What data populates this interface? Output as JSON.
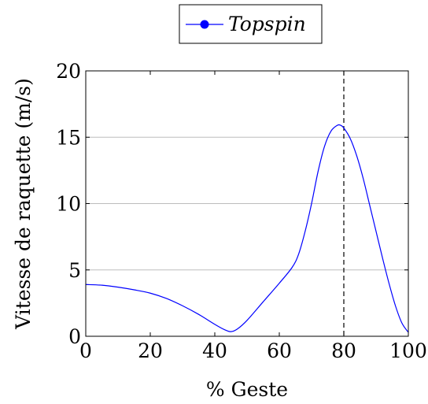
{
  "chart_data": {
    "type": "line",
    "title": "",
    "xlabel": "% Geste",
    "ylabel": "Vitesse de raquette (m/s)",
    "xlim": [
      0,
      100
    ],
    "ylim": [
      0,
      20
    ],
    "x_ticks": [
      0,
      20,
      40,
      60,
      80,
      100
    ],
    "x_tick_labels": [
      "0",
      "20",
      "40",
      "60",
      "80",
      "100"
    ],
    "y_ticks": [
      0,
      5,
      10,
      15,
      20
    ],
    "y_tick_labels": [
      "0",
      "5",
      "10",
      "15",
      "20"
    ],
    "grid": "horizontal",
    "legend_position": "top-center",
    "series": [
      {
        "name": "Topspin",
        "color": "#0000ff",
        "marker": "circle",
        "x": [
          0,
          5,
          10,
          15,
          20,
          25,
          30,
          35,
          40,
          43,
          45,
          47,
          50,
          55,
          60,
          64,
          66,
          68,
          70,
          72,
          74,
          76,
          78,
          79,
          80,
          82,
          84,
          86,
          88,
          90,
          92,
          94,
          96,
          98,
          100
        ],
        "y": [
          3.9,
          3.85,
          3.7,
          3.5,
          3.25,
          2.85,
          2.3,
          1.65,
          0.9,
          0.5,
          0.35,
          0.55,
          1.2,
          2.6,
          4.0,
          5.2,
          6.2,
          7.9,
          10.0,
          12.4,
          14.3,
          15.45,
          15.9,
          15.9,
          15.7,
          14.9,
          13.6,
          11.9,
          9.9,
          7.9,
          5.9,
          4.0,
          2.3,
          1.0,
          0.3
        ]
      }
    ],
    "annotations": [
      {
        "type": "vertical-dashed-line",
        "x": 80,
        "color": "#000000"
      }
    ]
  }
}
